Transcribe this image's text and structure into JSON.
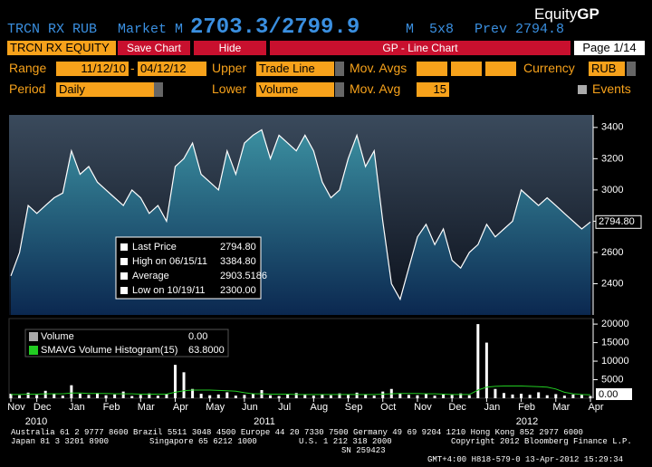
{
  "header": {
    "ticker": "TRCN RX RUB",
    "market": "Market M",
    "quote": "2703.3/2799.9",
    "quote_suffix": "M",
    "size": "5x8",
    "prev": "Prev 2794.8",
    "brand": "Equity",
    "brand_bold": "GP"
  },
  "toolbar": {
    "security": "TRCN RX EQUITY",
    "save": "Save Chart",
    "hide": "Hide",
    "title": "GP - Line Chart",
    "page": "Page 1/14"
  },
  "controls": {
    "range_label": "Range",
    "range_from": "11/12/10",
    "range_sep": "-",
    "range_to": "04/12/12",
    "upper_label": "Upper",
    "upper_value": "Trade Line",
    "movavgs_label": "Mov. Avgs",
    "currency_label": "Currency",
    "currency_value": "RUB",
    "period_label": "Period",
    "period_value": "Daily",
    "lower_label": "Lower",
    "lower_value": "Volume",
    "movavg_label": "Mov. Avg",
    "movavg_value": "15",
    "events_label": "Events"
  },
  "chart_data": [
    {
      "type": "line",
      "categories": [
        "Nov",
        null,
        null,
        "Dec",
        null,
        null,
        null,
        "Jan",
        null,
        null,
        null,
        "Feb",
        null,
        null,
        null,
        "Mar",
        null,
        null,
        null,
        "Apr",
        null,
        null,
        null,
        "May",
        null,
        null,
        null,
        "Jun",
        null,
        null,
        null,
        "Jul",
        null,
        null,
        null,
        "Aug",
        null,
        null,
        null,
        "Sep",
        null,
        null,
        null,
        "Oct",
        null,
        null,
        null,
        "Nov",
        null,
        null,
        null,
        "Dec",
        null,
        null,
        null,
        "Jan",
        null,
        null,
        null,
        "Feb",
        null,
        null,
        null,
        "Mar",
        null,
        null,
        null,
        "Apr"
      ],
      "years": [
        "2010",
        "2011",
        "2012"
      ],
      "series": [
        {
          "name": "Last Price",
          "color": "#ffffff",
          "values": [
            2450,
            2600,
            2900,
            2850,
            2900,
            2950,
            2980,
            3250,
            3100,
            3150,
            3050,
            3000,
            2950,
            2900,
            3000,
            2950,
            2850,
            2900,
            2800,
            3150,
            3200,
            3300,
            3100,
            3050,
            3000,
            3250,
            3100,
            3300,
            3350,
            3384.8,
            3200,
            3350,
            3300,
            3250,
            3350,
            3250,
            3050,
            2950,
            3000,
            3200,
            3350,
            3150,
            3250,
            2800,
            2400,
            2300,
            2500,
            2700,
            2780,
            2650,
            2750,
            2550,
            2500,
            2600,
            2650,
            2780,
            2700,
            2750,
            2800,
            3000,
            2950,
            2900,
            2950,
            2900,
            2850,
            2800,
            2750,
            2794.8
          ]
        }
      ],
      "ylim": [
        2200,
        3480
      ],
      "yticks": [
        2400,
        2600,
        2800,
        3000,
        3200,
        3400
      ],
      "legend": [
        {
          "name": "Last Price",
          "value": 2794.8,
          "label": "2794.80"
        },
        {
          "name": "High on 06/15/11",
          "value": 3384.8,
          "label": "3384.80"
        },
        {
          "name": "Average",
          "value": 2903.5186,
          "label": "2903.5186"
        },
        {
          "name": "Low on 10/19/11",
          "value": 2300,
          "label": "2300.00"
        }
      ]
    },
    {
      "type": "bar",
      "series": [
        {
          "name": "Volume",
          "color": "#ffffff",
          "values": [
            1200,
            800,
            1500,
            900,
            2000,
            1100,
            700,
            3500,
            1200,
            900,
            1400,
            800,
            1000,
            1800,
            600,
            900,
            1300,
            700,
            1100,
            9000,
            7000,
            2500,
            1200,
            800,
            1000,
            1600,
            700,
            900,
            1200,
            2200,
            800,
            600,
            1000,
            1400,
            900,
            700,
            1100,
            800,
            1300,
            900,
            1500,
            1000,
            700,
            1800,
            2500,
            1200,
            900,
            800,
            1100,
            700,
            1000,
            900,
            1300,
            800,
            20000,
            15000,
            2500,
            1400,
            1000,
            1200,
            900,
            1600,
            800,
            1100,
            700,
            1000,
            900,
            600
          ]
        },
        {
          "name": "SMAVG Volume Histogram(15)",
          "color": "#22cc22",
          "values": [
            1000,
            1000,
            1100,
            1100,
            1200,
            1200,
            1200,
            1400,
            1400,
            1300,
            1300,
            1300,
            1200,
            1200,
            1200,
            1100,
            1100,
            1100,
            1100,
            1600,
            2000,
            2200,
            2200,
            2200,
            2100,
            2000,
            1900,
            1500,
            1200,
            1200,
            1100,
            1100,
            1100,
            1000,
            1000,
            1000,
            1000,
            1000,
            1000,
            1000,
            1000,
            1000,
            1000,
            1100,
            1200,
            1300,
            1300,
            1300,
            1200,
            1200,
            1100,
            1000,
            1000,
            1000,
            2200,
            3000,
            3200,
            3300,
            3300,
            3300,
            3200,
            3100,
            3000,
            2500,
            1600,
            1200,
            1000,
            900
          ]
        }
      ],
      "legend_values": [
        "0.00",
        "63.8000"
      ],
      "ylim": [
        0,
        21000
      ],
      "yticks": [
        5000,
        10000,
        15000,
        20000
      ]
    }
  ],
  "footer": {
    "line1": "Australia 61 2 9777 8600 Brazil 5511 3048 4500 Europe 44 20 7330 7500 Germany 49 69 9204 1210 Hong Kong 852 2977 6000",
    "line2_left": "Japan 81 3 3201 8900",
    "line2_mid1": "Singapore 65 6212 1000",
    "line2_mid2": "U.S. 1 212 318 2000",
    "line2_right": "Copyright 2012 Bloomberg Finance L.P.",
    "line3_left": "SN 259423",
    "line3_right": "GMT+4:00 H818-579-0 13-Apr-2012 15:29:34"
  }
}
